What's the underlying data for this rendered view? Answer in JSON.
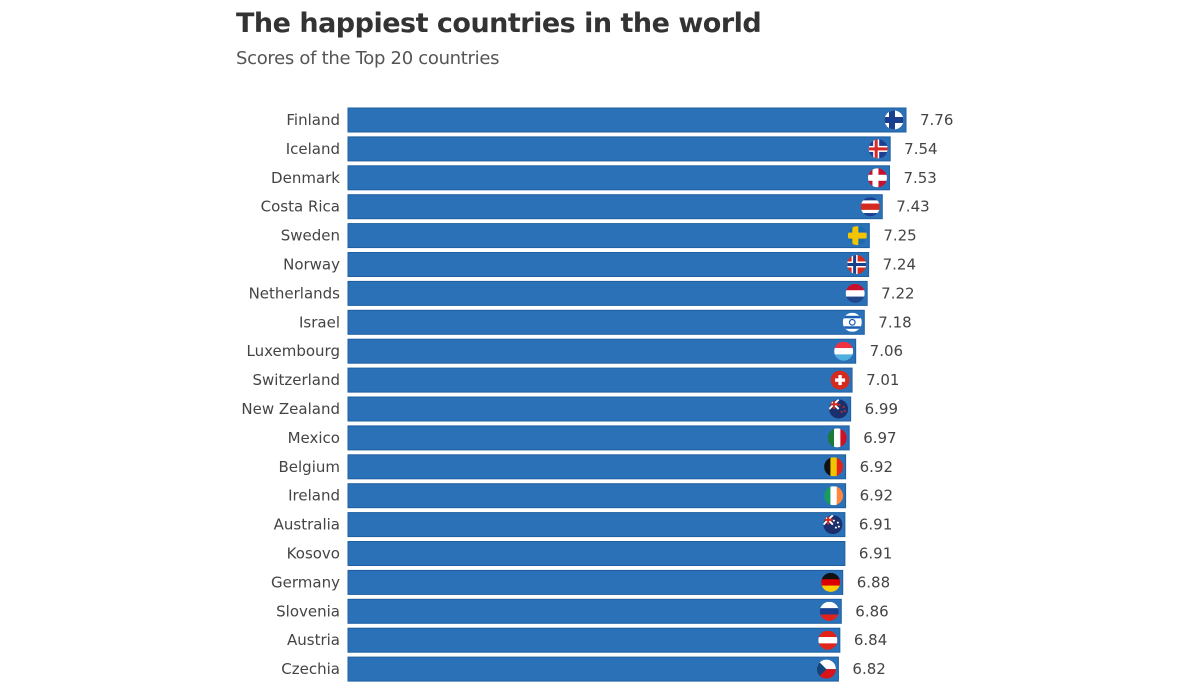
{
  "chart_data": {
    "type": "bar",
    "orientation": "horizontal",
    "title": "The happiest countries in the world",
    "subtitle": "Scores of the Top 20 countries",
    "xlim": [
      0,
      7.76
    ],
    "grid": false,
    "bar_color": "#2b71b8",
    "categories": [
      "Finland",
      "Iceland",
      "Denmark",
      "Costa Rica",
      "Sweden",
      "Norway",
      "Netherlands",
      "Israel",
      "Luxembourg",
      "Switzerland",
      "New Zealand",
      "Mexico",
      "Belgium",
      "Ireland",
      "Australia",
      "Kosovo",
      "Germany",
      "Slovenia",
      "Austria",
      "Czechia"
    ],
    "values": [
      7.76,
      7.54,
      7.53,
      7.43,
      7.25,
      7.24,
      7.22,
      7.18,
      7.06,
      7.01,
      6.99,
      6.97,
      6.92,
      6.92,
      6.91,
      6.91,
      6.88,
      6.86,
      6.84,
      6.82
    ],
    "value_labels": [
      "7.76",
      "7.54",
      "7.53",
      "7.43",
      "7.25",
      "7.24",
      "7.22",
      "7.18",
      "7.06",
      "7.01",
      "6.99",
      "6.97",
      "6.92",
      "6.92",
      "6.91",
      "6.91",
      "6.88",
      "6.86",
      "6.84",
      "6.82"
    ],
    "flags": [
      {
        "type": "nordic",
        "colors": [
          "#ffffff",
          "#1a3f8f"
        ]
      },
      {
        "type": "nordic2",
        "colors": [
          "#1f3e8f",
          "#ffffff",
          "#d72828"
        ]
      },
      {
        "type": "nordic",
        "colors": [
          "#c8102e",
          "#ffffff"
        ]
      },
      {
        "type": "h",
        "colors": [
          "#1a3f8f",
          "#ffffff",
          "#d52b1e",
          "#d52b1e",
          "#ffffff",
          "#1a3f8f"
        ]
      },
      {
        "type": "nordic",
        "colors": [
          "#1a6bb0",
          "#f5c400"
        ]
      },
      {
        "type": "nordic2",
        "colors": [
          "#d52b1e",
          "#ffffff",
          "#1a3f8f"
        ]
      },
      {
        "type": "h",
        "colors": [
          "#c8102e",
          "#ffffff",
          "#21468b"
        ]
      },
      {
        "type": "israel",
        "colors": [
          "#ffffff",
          "#1a5fb4"
        ]
      },
      {
        "type": "h",
        "colors": [
          "#ef3340",
          "#ffffff",
          "#4fb0e0"
        ]
      },
      {
        "type": "swiss",
        "colors": [
          "#d52b1e",
          "#ffffff"
        ]
      },
      {
        "type": "ensign",
        "colors": [
          "#1a2f6b",
          "#d52b1e"
        ]
      },
      {
        "type": "v",
        "colors": [
          "#1a7a3e",
          "#ffffff",
          "#ce1126"
        ]
      },
      {
        "type": "v",
        "colors": [
          "#111111",
          "#f5c400",
          "#e2231a"
        ]
      },
      {
        "type": "v",
        "colors": [
          "#169b62",
          "#ffffff",
          "#ff883e"
        ]
      },
      {
        "type": "ensign",
        "colors": [
          "#1a2f6b",
          "#ffffff"
        ]
      },
      null,
      {
        "type": "h",
        "colors": [
          "#111111",
          "#dd0000",
          "#ffce00"
        ]
      },
      {
        "type": "h",
        "colors": [
          "#ffffff",
          "#1a3f8f",
          "#e2231a"
        ]
      },
      {
        "type": "h",
        "colors": [
          "#e2231a",
          "#ffffff",
          "#e2231a"
        ]
      },
      {
        "type": "czech",
        "colors": [
          "#ffffff",
          "#d7141a",
          "#11457e"
        ]
      }
    ]
  }
}
